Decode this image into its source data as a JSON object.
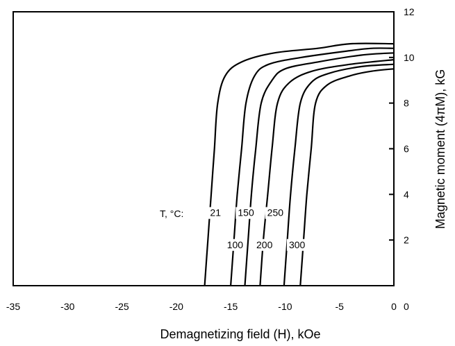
{
  "chart_data": {
    "type": "line",
    "xlabel": "Demagnetizing field (H), kOe",
    "ylabel": "Magnetic moment (4πM), kG",
    "xlim": [
      -35,
      0
    ],
    "ylim": [
      0,
      12
    ],
    "x_ticks": [
      "-35",
      "-30",
      "-25",
      "-20",
      "-15",
      "-10",
      "-5",
      "0"
    ],
    "y_ticks": [
      "2",
      "4",
      "6",
      "8",
      "10",
      "12"
    ],
    "y_tick_values": [
      2,
      4,
      6,
      8,
      10,
      12
    ],
    "temperature_label": "T, °C:",
    "legend": "curves labeled inline by temperature",
    "grid": false,
    "series": [
      {
        "name": "21",
        "label_at": [
          -16.4,
          3.2
        ],
        "points": [
          [
            -17.4,
            0
          ],
          [
            -17.1,
            2
          ],
          [
            -16.8,
            4
          ],
          [
            -16.5,
            6
          ],
          [
            -16.2,
            8
          ],
          [
            -15.5,
            9.2
          ],
          [
            -14.0,
            9.8
          ],
          [
            -11.0,
            10.2
          ],
          [
            -7.0,
            10.4
          ],
          [
            -4.0,
            10.6
          ],
          [
            0,
            10.6
          ]
        ]
      },
      {
        "name": "100",
        "label_at": [
          -14.6,
          1.8
        ],
        "points": [
          [
            -15.0,
            0
          ],
          [
            -14.7,
            2
          ],
          [
            -14.4,
            4
          ],
          [
            -14.0,
            6
          ],
          [
            -13.6,
            8
          ],
          [
            -12.8,
            9.2
          ],
          [
            -11.5,
            9.7
          ],
          [
            -8.5,
            10.0
          ],
          [
            -4.0,
            10.3
          ],
          [
            -2.0,
            10.4
          ],
          [
            0,
            10.4
          ]
        ]
      },
      {
        "name": "150",
        "label_at": [
          -13.6,
          3.2
        ],
        "points": [
          [
            -13.7,
            0
          ],
          [
            -13.4,
            2
          ],
          [
            -13.1,
            4
          ],
          [
            -12.7,
            6
          ],
          [
            -12.2,
            8
          ],
          [
            -11.2,
            9.0
          ],
          [
            -10.0,
            9.5
          ],
          [
            -7.0,
            9.8
          ],
          [
            -3.0,
            10.1
          ],
          [
            0,
            10.2
          ]
        ]
      },
      {
        "name": "200",
        "label_at": [
          -11.9,
          1.8
        ],
        "points": [
          [
            -12.3,
            0
          ],
          [
            -12.0,
            2
          ],
          [
            -11.6,
            4
          ],
          [
            -11.2,
            6
          ],
          [
            -10.7,
            8
          ],
          [
            -9.6,
            8.9
          ],
          [
            -7.5,
            9.4
          ],
          [
            -4.0,
            9.7
          ],
          [
            0,
            9.9
          ]
        ]
      },
      {
        "name": "250",
        "label_at": [
          -10.9,
          3.2
        ],
        "points": [
          [
            -10.1,
            0
          ],
          [
            -9.8,
            2
          ],
          [
            -9.5,
            4
          ],
          [
            -9.1,
            6
          ],
          [
            -8.6,
            8
          ],
          [
            -7.6,
            8.9
          ],
          [
            -6.0,
            9.3
          ],
          [
            -3.0,
            9.6
          ],
          [
            0,
            9.7
          ]
        ]
      },
      {
        "name": "300",
        "label_at": [
          -8.9,
          1.8
        ],
        "points": [
          [
            -8.6,
            0
          ],
          [
            -8.3,
            2
          ],
          [
            -8.0,
            4
          ],
          [
            -7.6,
            6
          ],
          [
            -7.2,
            8
          ],
          [
            -6.1,
            8.8
          ],
          [
            -4.0,
            9.2
          ],
          [
            -2.0,
            9.4
          ],
          [
            0,
            9.5
          ]
        ]
      }
    ]
  }
}
